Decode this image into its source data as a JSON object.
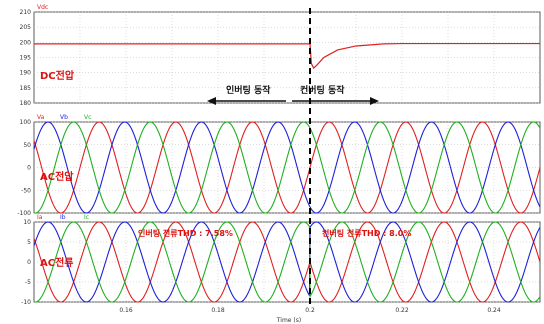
{
  "chart_data": [
    {
      "panel": "top",
      "type": "line",
      "legend": [
        "Vdc"
      ],
      "label": "DC전압",
      "ylim": [
        180,
        210
      ],
      "yticks": [
        180,
        185,
        190,
        195,
        200,
        205,
        210
      ],
      "xlim": [
        0.14,
        0.25
      ],
      "grid": true,
      "series": [
        {
          "name": "Vdc",
          "x": [
            0.14,
            0.2,
            0.2003,
            0.2008,
            0.2015,
            0.203,
            0.206,
            0.21,
            0.216,
            0.22,
            0.25
          ],
          "y": [
            199.5,
            199.5,
            193,
            191.5,
            192.5,
            195,
            197.5,
            198.8,
            199.5,
            199.6,
            199.6
          ]
        }
      ],
      "annotations": [
        "인버팅 동작",
        "컨버팅 동작"
      ]
    },
    {
      "panel": "middle",
      "type": "line",
      "legend": [
        "Va",
        "Vb",
        "Vc"
      ],
      "label": "AC전압",
      "ylim": [
        -100,
        100
      ],
      "yticks": [
        -100,
        -50,
        0,
        50,
        100
      ],
      "xlim": [
        0.14,
        0.25
      ],
      "grid": true,
      "frequency_hz": 60,
      "series": [
        {
          "name": "Va",
          "amplitude": 100,
          "phase_deg": 0
        },
        {
          "name": "Vb",
          "amplitude": 100,
          "phase_deg": -120
        },
        {
          "name": "Vc",
          "amplitude": 100,
          "phase_deg": 120
        }
      ]
    },
    {
      "panel": "bottom",
      "type": "line",
      "legend": [
        "Ia",
        "Ib",
        "Ic"
      ],
      "label": "AC전류",
      "ylim": [
        -10,
        10
      ],
      "yticks": [
        -10,
        -5,
        0,
        5,
        10
      ],
      "xlim": [
        0.14,
        0.25
      ],
      "xticks": [
        0.16,
        0.18,
        0.2,
        0.22,
        0.24
      ],
      "xtick_labels": [
        "0.16",
        "0.18",
        "0.2",
        "0.22",
        "0.24"
      ],
      "xlabel": "Time (s)",
      "grid": true,
      "frequency_hz": 60,
      "series": [
        {
          "name": "Ia",
          "amplitude": 10,
          "phase_deg": 0,
          "phase_after_deg": 180
        },
        {
          "name": "Ib",
          "amplitude": 10,
          "phase_deg": -120,
          "phase_after_deg": 60
        },
        {
          "name": "Ic",
          "amplitude": 10,
          "phase_deg": 120,
          "phase_after_deg": -60
        }
      ],
      "annotations": [
        "인버팅 전류THD : 7.58%",
        "컨버팅 전류THD : 8.0%"
      ]
    }
  ],
  "colors": {
    "red": "#e02020",
    "blue": "#2020d8",
    "green": "#20b020",
    "grid": "#bbbbbb",
    "annotation": "#e01010",
    "frame": "#333333"
  }
}
